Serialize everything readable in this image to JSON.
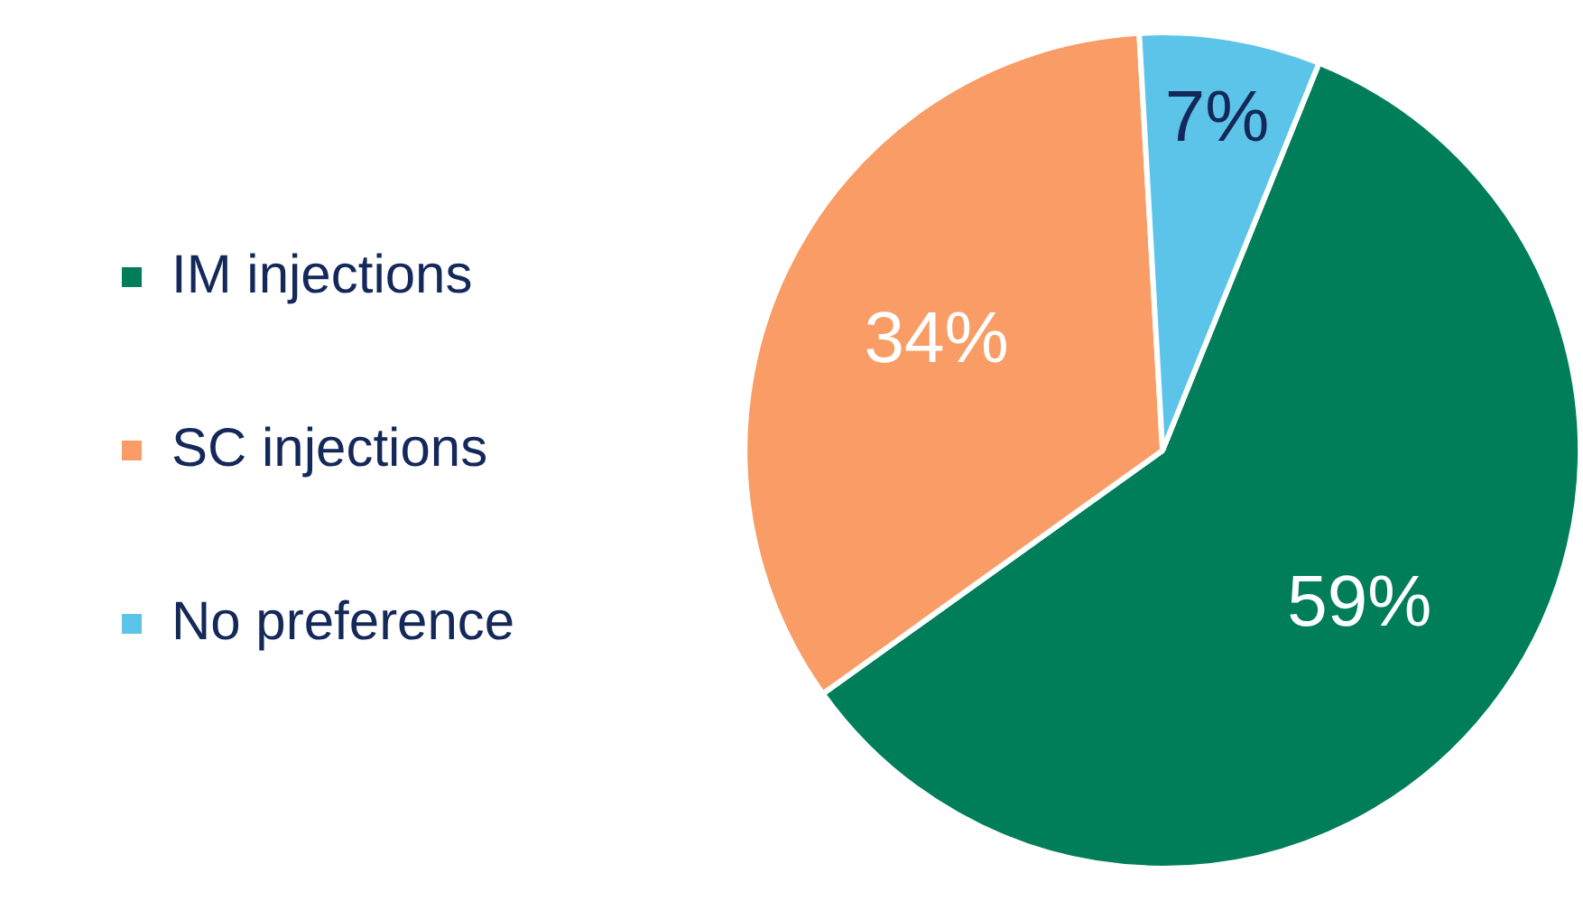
{
  "chart_data": {
    "type": "pie",
    "categories": [
      "IM injections",
      "SC injections",
      "No preference"
    ],
    "values": [
      59,
      34,
      7
    ],
    "colors": [
      "#007e5a",
      "#f99c65",
      "#5bc4e8"
    ],
    "legend": "left",
    "value_labels": [
      "59%",
      "34%",
      "7%"
    ]
  }
}
